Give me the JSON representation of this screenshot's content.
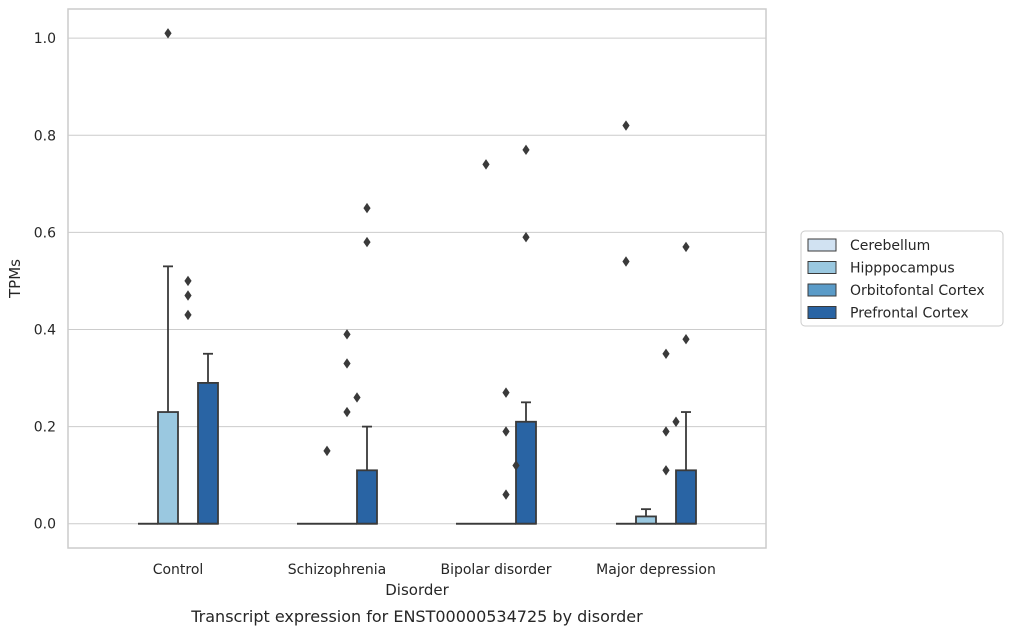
{
  "chart_data": {
    "type": "box",
    "caption": "Transcript expression for ENST00000534725 by disorder",
    "xlabel": "Disorder",
    "ylabel": "TPMs",
    "ylim": [
      -0.05,
      1.06
    ],
    "yticks": [
      0.0,
      0.2,
      0.4,
      0.6,
      0.8,
      1.0
    ],
    "ytick_labels": [
      "0.0",
      "0.2",
      "0.4",
      "0.6",
      "0.8",
      "1.0"
    ],
    "grid": true,
    "legend_position": "right",
    "categories": [
      "Control",
      "Schizophrenia",
      "Bipolar disorder",
      "Major depression"
    ],
    "series": [
      {
        "name": "Cerebellum",
        "color": "#d1e2f2",
        "boxes": [
          {
            "q1": 0,
            "median": 0,
            "q3": 0,
            "whisker_low": 0,
            "whisker_high": 0,
            "outliers": []
          },
          {
            "q1": 0,
            "median": 0,
            "q3": 0,
            "whisker_low": 0,
            "whisker_high": 0,
            "outliers": []
          },
          {
            "q1": 0,
            "median": 0,
            "q3": 0,
            "whisker_low": 0,
            "whisker_high": 0,
            "outliers": []
          },
          {
            "q1": 0,
            "median": 0,
            "q3": 0,
            "whisker_low": 0,
            "whisker_high": 0,
            "outliers": [
              0.82,
              0.54
            ]
          }
        ]
      },
      {
        "name": "Hipppocampus",
        "color": "#9ac8e0",
        "boxes": [
          {
            "q1": 0,
            "median": 0,
            "q3": 0.23,
            "whisker_low": 0,
            "whisker_high": 0.53,
            "outliers": [
              1.01
            ]
          },
          {
            "q1": 0,
            "median": 0,
            "q3": 0,
            "whisker_low": 0,
            "whisker_high": 0,
            "outliers": [
              0.15
            ]
          },
          {
            "q1": 0,
            "median": 0,
            "q3": 0,
            "whisker_low": 0,
            "whisker_high": 0,
            "outliers": [
              0.74
            ]
          },
          {
            "q1": 0,
            "median": 0,
            "q3": 0.015,
            "whisker_low": 0,
            "whisker_high": 0.03,
            "outliers": []
          }
        ]
      },
      {
        "name": "Orbitofontal Cortex",
        "color": "#5a9bc8",
        "boxes": [
          {
            "q1": 0,
            "median": 0,
            "q3": 0,
            "whisker_low": 0,
            "whisker_high": 0,
            "outliers": [
              0.5,
              0.47,
              0.43
            ]
          },
          {
            "q1": 0,
            "median": 0,
            "q3": 0,
            "whisker_low": 0,
            "whisker_high": 0,
            "outliers": [
              0.39,
              0.33,
              0.23
            ]
          },
          {
            "q1": 0,
            "median": 0,
            "q3": 0,
            "whisker_low": 0,
            "whisker_high": 0,
            "outliers": [
              0.27,
              0.19,
              0.06
            ]
          },
          {
            "q1": 0,
            "median": 0,
            "q3": 0,
            "whisker_low": 0,
            "whisker_high": 0,
            "outliers": [
              0.35,
              0.19,
              0.11
            ]
          }
        ]
      },
      {
        "name": "Prefrontal Cortex",
        "color": "#2964a4",
        "boxes": [
          {
            "q1": 0,
            "median": 0,
            "q3": 0.29,
            "whisker_low": 0,
            "whisker_high": 0.35,
            "outliers": []
          },
          {
            "q1": 0,
            "median": 0,
            "q3": 0.11,
            "whisker_low": 0,
            "whisker_high": 0.2,
            "outliers": [
              0.65,
              0.58
            ]
          },
          {
            "q1": 0,
            "median": 0,
            "q3": 0.21,
            "whisker_low": 0,
            "whisker_high": 0.25,
            "outliers": [
              0.77,
              0.59
            ]
          },
          {
            "q1": 0,
            "median": 0,
            "q3": 0.11,
            "whisker_low": 0,
            "whisker_high": 0.23,
            "outliers": [
              0.57,
              0.38
            ]
          }
        ]
      }
    ],
    "extra_points_between_series": [
      {
        "category": 1,
        "between": [
          2,
          3
        ],
        "value": 0.26
      },
      {
        "category": 2,
        "between": [
          2,
          3
        ],
        "value": 0.12
      },
      {
        "category": 3,
        "between": [
          2,
          3
        ],
        "value": 0.21
      }
    ]
  }
}
